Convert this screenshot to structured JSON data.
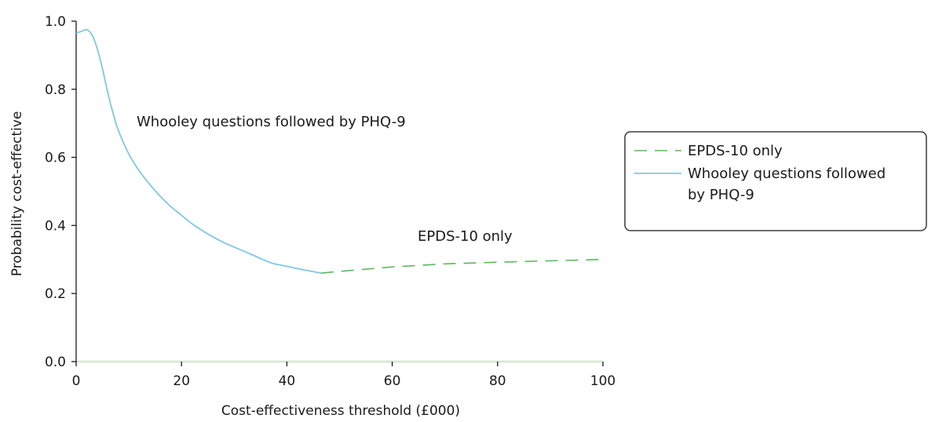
{
  "chart_data": {
    "type": "line",
    "title": "",
    "xlabel": "Cost-effectiveness threshold (£000)",
    "ylabel": "Probability cost-effective",
    "xlim": [
      0,
      100
    ],
    "ylim": [
      0,
      1.0
    ],
    "x_ticks": [
      0,
      20,
      40,
      60,
      80,
      100
    ],
    "x_tick_labels": [
      "0",
      "20",
      "40",
      "60",
      "80",
      "100"
    ],
    "y_ticks": [
      0,
      0.2,
      0.4,
      0.6,
      0.8,
      1.0
    ],
    "y_tick_labels": [
      "0.0",
      "0.2",
      "0.4",
      "0.6",
      "0.8",
      "1.0"
    ],
    "grid": false,
    "legend_position": "right",
    "series": [
      {
        "name": "EPDS-10 only",
        "style": "dashed",
        "color": "#5cb85c",
        "points": [
          [
            46.5,
            0.26
          ],
          [
            50,
            0.265
          ],
          [
            60,
            0.278
          ],
          [
            70,
            0.287
          ],
          [
            80,
            0.292
          ],
          [
            90,
            0.296
          ],
          [
            100,
            0.3
          ]
        ]
      },
      {
        "name": "Whooley questions followed by PHQ-9",
        "style": "solid",
        "color": "#7ec8e3",
        "points": [
          [
            0,
            0.965
          ],
          [
            1,
            0.97
          ],
          [
            2,
            0.975
          ],
          [
            3,
            0.96
          ],
          [
            4,
            0.92
          ],
          [
            5,
            0.86
          ],
          [
            6,
            0.79
          ],
          [
            7,
            0.73
          ],
          [
            8,
            0.68
          ],
          [
            10,
            0.61
          ],
          [
            12,
            0.56
          ],
          [
            14,
            0.52
          ],
          [
            16,
            0.485
          ],
          [
            18,
            0.455
          ],
          [
            20,
            0.43
          ],
          [
            22,
            0.405
          ],
          [
            25,
            0.375
          ],
          [
            28,
            0.35
          ],
          [
            31,
            0.33
          ],
          [
            34,
            0.31
          ],
          [
            37,
            0.29
          ],
          [
            40,
            0.28
          ],
          [
            43,
            0.27
          ],
          [
            46.5,
            0.26
          ]
        ]
      }
    ],
    "annotations": [
      {
        "text": "Whooley questions followed by PHQ-9",
        "x": 11.5,
        "y": 0.71
      },
      {
        "text": "EPDS-10 only",
        "x": 65,
        "y": 0.365
      }
    ],
    "legend": {
      "items": [
        "EPDS-10 only",
        "Whooley questions followed",
        "by PHQ-9"
      ]
    }
  }
}
